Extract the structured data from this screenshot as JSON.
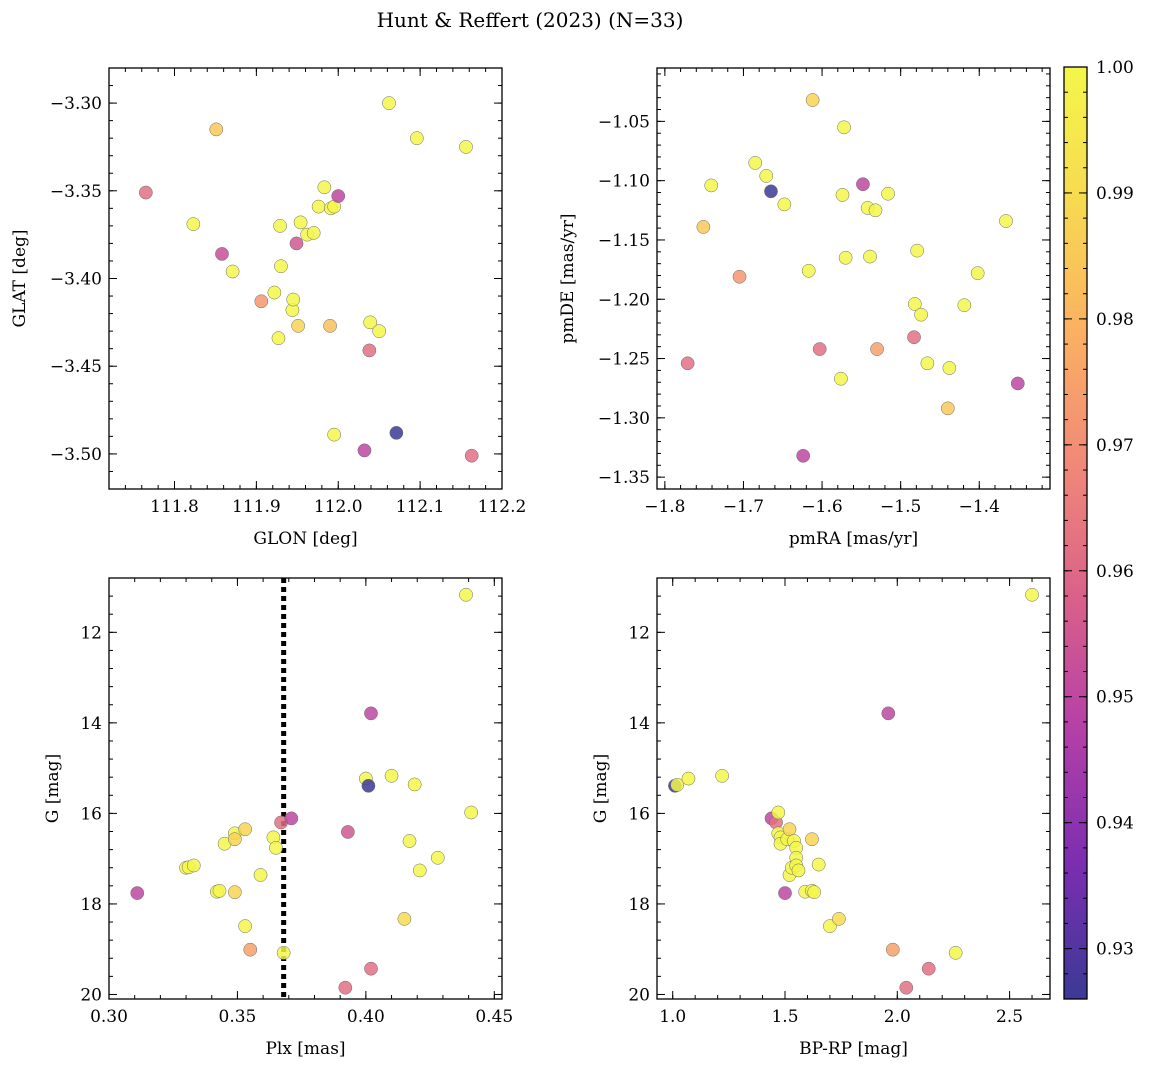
{
  "figure": {
    "title": "Hunt & Reffert (2023) (N=33)"
  },
  "colorbar": {
    "range": [
      0.926,
      1.0
    ],
    "ticks": [
      0.93,
      0.94,
      0.95,
      0.96,
      0.97,
      0.98,
      0.99,
      1.0
    ],
    "tick_labels": [
      "0.93",
      "0.94",
      "0.95",
      "0.96",
      "0.97",
      "0.98",
      "0.99",
      "1.00"
    ],
    "colormap": "plasma",
    "stops": [
      "#3b3a96",
      "#7a2eb0",
      "#b33fa8",
      "#d9608a",
      "#f08878",
      "#fbb062",
      "#f7da50",
      "#f4f64a"
    ]
  },
  "chart_data": [
    {
      "id": "glon-glat",
      "type": "scatter",
      "title": "",
      "xlabel": "GLON [deg]",
      "ylabel": "GLAT [deg]",
      "xlim": [
        111.72,
        112.2
      ],
      "ylim": [
        -3.52,
        -3.28
      ],
      "y_inverted": false,
      "xticks": [
        111.8,
        111.9,
        112.0,
        112.1,
        112.2
      ],
      "xtick_labels": [
        "111.8",
        "111.9",
        "112.0",
        "112.1",
        "112.2"
      ],
      "yticks": [
        -3.5,
        -3.45,
        -3.4,
        -3.35,
        -3.3
      ],
      "ytick_labels": [
        "−3.50",
        "−3.45",
        "−3.40",
        "−3.35",
        "−3.30"
      ],
      "points": [
        {
          "x": 111.765,
          "y": -3.351,
          "c": 0.962
        },
        {
          "x": 111.823,
          "y": -3.369,
          "c": 1.0
        },
        {
          "x": 111.851,
          "y": -3.315,
          "c": 0.985
        },
        {
          "x": 111.858,
          "y": -3.386,
          "c": 0.952
        },
        {
          "x": 111.871,
          "y": -3.396,
          "c": 1.0
        },
        {
          "x": 111.906,
          "y": -3.413,
          "c": 0.972
        },
        {
          "x": 111.922,
          "y": -3.408,
          "c": 1.0
        },
        {
          "x": 111.927,
          "y": -3.434,
          "c": 1.0
        },
        {
          "x": 111.929,
          "y": -3.37,
          "c": 1.0
        },
        {
          "x": 111.93,
          "y": -3.393,
          "c": 1.0
        },
        {
          "x": 111.944,
          "y": -3.418,
          "c": 1.0
        },
        {
          "x": 111.945,
          "y": -3.412,
          "c": 1.0
        },
        {
          "x": 111.949,
          "y": -3.38,
          "c": 0.955
        },
        {
          "x": 111.951,
          "y": -3.427,
          "c": 0.988
        },
        {
          "x": 111.954,
          "y": -3.368,
          "c": 1.0
        },
        {
          "x": 111.962,
          "y": -3.375,
          "c": 1.0
        },
        {
          "x": 111.97,
          "y": -3.374,
          "c": 1.0
        },
        {
          "x": 111.976,
          "y": -3.359,
          "c": 1.0
        },
        {
          "x": 111.983,
          "y": -3.348,
          "c": 1.0
        },
        {
          "x": 111.99,
          "y": -3.427,
          "c": 0.983
        },
        {
          "x": 111.991,
          "y": -3.36,
          "c": 1.0
        },
        {
          "x": 111.995,
          "y": -3.359,
          "c": 1.0
        },
        {
          "x": 111.995,
          "y": -3.489,
          "c": 1.0
        },
        {
          "x": 112.0,
          "y": -3.353,
          "c": 0.95
        },
        {
          "x": 112.032,
          "y": -3.498,
          "c": 0.95
        },
        {
          "x": 112.038,
          "y": -3.441,
          "c": 0.962
        },
        {
          "x": 112.039,
          "y": -3.425,
          "c": 1.0
        },
        {
          "x": 112.05,
          "y": -3.43,
          "c": 1.0
        },
        {
          "x": 112.062,
          "y": -3.3,
          "c": 1.0
        },
        {
          "x": 112.071,
          "y": -3.488,
          "c": 0.926
        },
        {
          "x": 112.096,
          "y": -3.32,
          "c": 1.0
        },
        {
          "x": 112.156,
          "y": -3.325,
          "c": 1.0
        },
        {
          "x": 112.163,
          "y": -3.501,
          "c": 0.962
        }
      ]
    },
    {
      "id": "pm",
      "type": "scatter",
      "title": "",
      "xlabel": "pmRA [mas/yr]",
      "ylabel": "pmDE [mas/yr]",
      "xlim": [
        -1.81,
        -1.31
      ],
      "ylim": [
        -1.36,
        -1.005
      ],
      "y_inverted": false,
      "xticks": [
        -1.8,
        -1.7,
        -1.6,
        -1.5,
        -1.4
      ],
      "xtick_labels": [
        "−1.8",
        "−1.7",
        "−1.6",
        "−1.5",
        "−1.4"
      ],
      "yticks": [
        -1.35,
        -1.3,
        -1.25,
        -1.2,
        -1.15,
        -1.1,
        -1.05
      ],
      "ytick_labels": [
        "−1.35",
        "−1.30",
        "−1.25",
        "−1.20",
        "−1.15",
        "−1.10",
        "−1.05"
      ],
      "points": [
        {
          "x": -1.771,
          "y": -1.254,
          "c": 0.962
        },
        {
          "x": -1.751,
          "y": -1.139,
          "c": 0.985
        },
        {
          "x": -1.741,
          "y": -1.104,
          "c": 1.0
        },
        {
          "x": -1.705,
          "y": -1.181,
          "c": 0.972
        },
        {
          "x": -1.685,
          "y": -1.085,
          "c": 1.0
        },
        {
          "x": -1.671,
          "y": -1.096,
          "c": 1.0
        },
        {
          "x": -1.665,
          "y": -1.109,
          "c": 0.926
        },
        {
          "x": -1.648,
          "y": -1.12,
          "c": 1.0
        },
        {
          "x": -1.624,
          "y": -1.332,
          "c": 0.95
        },
        {
          "x": -1.617,
          "y": -1.176,
          "c": 1.0
        },
        {
          "x": -1.612,
          "y": -1.032,
          "c": 0.988
        },
        {
          "x": -1.603,
          "y": -1.242,
          "c": 0.962
        },
        {
          "x": -1.576,
          "y": -1.267,
          "c": 1.0
        },
        {
          "x": -1.574,
          "y": -1.112,
          "c": 1.0
        },
        {
          "x": -1.572,
          "y": -1.055,
          "c": 1.0
        },
        {
          "x": -1.57,
          "y": -1.165,
          "c": 1.0
        },
        {
          "x": -1.548,
          "y": -1.103,
          "c": 0.95
        },
        {
          "x": -1.542,
          "y": -1.123,
          "c": 1.0
        },
        {
          "x": -1.539,
          "y": -1.164,
          "c": 1.0
        },
        {
          "x": -1.532,
          "y": -1.125,
          "c": 1.0
        },
        {
          "x": -1.53,
          "y": -1.242,
          "c": 0.975
        },
        {
          "x": -1.516,
          "y": -1.111,
          "c": 1.0
        },
        {
          "x": -1.483,
          "y": -1.232,
          "c": 0.962
        },
        {
          "x": -1.482,
          "y": -1.204,
          "c": 1.0
        },
        {
          "x": -1.479,
          "y": -1.159,
          "c": 1.0
        },
        {
          "x": -1.474,
          "y": -1.213,
          "c": 1.0
        },
        {
          "x": -1.466,
          "y": -1.254,
          "c": 1.0
        },
        {
          "x": -1.44,
          "y": -1.292,
          "c": 0.985
        },
        {
          "x": -1.438,
          "y": -1.258,
          "c": 1.0
        },
        {
          "x": -1.419,
          "y": -1.205,
          "c": 1.0
        },
        {
          "x": -1.402,
          "y": -1.178,
          "c": 1.0
        },
        {
          "x": -1.366,
          "y": -1.134,
          "c": 1.0
        },
        {
          "x": -1.351,
          "y": -1.271,
          "c": 0.95
        }
      ]
    },
    {
      "id": "plx-g",
      "type": "scatter",
      "title": "",
      "xlabel": "Plx [mas]",
      "ylabel": "G [mag]",
      "xlim": [
        0.3,
        0.453
      ],
      "ylim": [
        20.1,
        10.8
      ],
      "y_inverted": true,
      "xticks": [
        0.3,
        0.35,
        0.4,
        0.45
      ],
      "xtick_labels": [
        "0.30",
        "0.35",
        "0.40",
        "0.45"
      ],
      "yticks": [
        12,
        14,
        16,
        18,
        20
      ],
      "ytick_labels": [
        "12",
        "14",
        "16",
        "18",
        "20"
      ],
      "vline": 0.368,
      "points": [
        {
          "x": 0.311,
          "y": 17.76,
          "c": 0.95
        },
        {
          "x": 0.33,
          "y": 17.2,
          "c": 1.0
        },
        {
          "x": 0.331,
          "y": 17.19,
          "c": 1.0
        },
        {
          "x": 0.333,
          "y": 17.15,
          "c": 1.0
        },
        {
          "x": 0.342,
          "y": 17.73,
          "c": 1.0
        },
        {
          "x": 0.343,
          "y": 17.71,
          "c": 1.0
        },
        {
          "x": 0.345,
          "y": 16.67,
          "c": 1.0
        },
        {
          "x": 0.349,
          "y": 16.44,
          "c": 1.0
        },
        {
          "x": 0.349,
          "y": 16.57,
          "c": 0.988
        },
        {
          "x": 0.349,
          "y": 17.74,
          "c": 0.988
        },
        {
          "x": 0.353,
          "y": 16.35,
          "c": 0.988
        },
        {
          "x": 0.353,
          "y": 18.49,
          "c": 1.0
        },
        {
          "x": 0.355,
          "y": 19.01,
          "c": 0.975
        },
        {
          "x": 0.359,
          "y": 17.36,
          "c": 1.0
        },
        {
          "x": 0.364,
          "y": 16.53,
          "c": 1.0
        },
        {
          "x": 0.365,
          "y": 16.76,
          "c": 1.0
        },
        {
          "x": 0.367,
          "y": 16.2,
          "c": 0.962
        },
        {
          "x": 0.368,
          "y": 19.08,
          "c": 1.0
        },
        {
          "x": 0.371,
          "y": 16.11,
          "c": 0.95
        },
        {
          "x": 0.392,
          "y": 19.85,
          "c": 0.962
        },
        {
          "x": 0.393,
          "y": 16.41,
          "c": 0.955
        },
        {
          "x": 0.4,
          "y": 15.23,
          "c": 1.0
        },
        {
          "x": 0.401,
          "y": 15.39,
          "c": 0.926
        },
        {
          "x": 0.402,
          "y": 13.79,
          "c": 0.95
        },
        {
          "x": 0.402,
          "y": 19.43,
          "c": 0.962
        },
        {
          "x": 0.41,
          "y": 15.17,
          "c": 1.0
        },
        {
          "x": 0.415,
          "y": 18.33,
          "c": 0.99
        },
        {
          "x": 0.417,
          "y": 16.61,
          "c": 1.0
        },
        {
          "x": 0.419,
          "y": 15.36,
          "c": 1.0
        },
        {
          "x": 0.421,
          "y": 17.26,
          "c": 1.0
        },
        {
          "x": 0.428,
          "y": 16.98,
          "c": 1.0
        },
        {
          "x": 0.439,
          "y": 11.17,
          "c": 1.0
        },
        {
          "x": 0.441,
          "y": 15.98,
          "c": 1.0
        }
      ]
    },
    {
      "id": "cmd",
      "type": "scatter",
      "title": "",
      "xlabel": "BP-RP [mag]",
      "ylabel": "G [mag]",
      "xlim": [
        0.93,
        2.68
      ],
      "ylim": [
        20.1,
        10.8
      ],
      "y_inverted": true,
      "xticks": [
        1.0,
        1.5,
        2.0,
        2.5
      ],
      "xtick_labels": [
        "1.0",
        "1.5",
        "2.0",
        "2.5"
      ],
      "yticks": [
        12,
        14,
        16,
        18,
        20
      ],
      "ytick_labels": [
        "12",
        "14",
        "16",
        "18",
        "20"
      ],
      "points": [
        {
          "x": 1.01,
          "y": 15.39,
          "c": 0.926
        },
        {
          "x": 1.02,
          "y": 15.37,
          "c": 1.0
        },
        {
          "x": 1.07,
          "y": 15.23,
          "c": 1.0
        },
        {
          "x": 1.22,
          "y": 15.17,
          "c": 1.0
        },
        {
          "x": 1.44,
          "y": 16.11,
          "c": 0.95
        },
        {
          "x": 1.46,
          "y": 16.2,
          "c": 0.962
        },
        {
          "x": 1.47,
          "y": 15.98,
          "c": 1.0
        },
        {
          "x": 1.47,
          "y": 16.44,
          "c": 1.0
        },
        {
          "x": 1.48,
          "y": 16.53,
          "c": 1.0
        },
        {
          "x": 1.48,
          "y": 16.67,
          "c": 1.0
        },
        {
          "x": 1.5,
          "y": 17.76,
          "c": 0.95
        },
        {
          "x": 1.51,
          "y": 16.57,
          "c": 1.0
        },
        {
          "x": 1.52,
          "y": 16.35,
          "c": 0.988
        },
        {
          "x": 1.52,
          "y": 17.36,
          "c": 1.0
        },
        {
          "x": 1.53,
          "y": 17.2,
          "c": 1.0
        },
        {
          "x": 1.54,
          "y": 16.61,
          "c": 1.0
        },
        {
          "x": 1.55,
          "y": 16.76,
          "c": 1.0
        },
        {
          "x": 1.55,
          "y": 16.98,
          "c": 1.0
        },
        {
          "x": 1.55,
          "y": 17.15,
          "c": 1.0
        },
        {
          "x": 1.56,
          "y": 17.26,
          "c": 1.0
        },
        {
          "x": 1.59,
          "y": 17.73,
          "c": 1.0
        },
        {
          "x": 1.62,
          "y": 17.71,
          "c": 1.0
        },
        {
          "x": 1.62,
          "y": 16.57,
          "c": 0.988
        },
        {
          "x": 1.63,
          "y": 17.74,
          "c": 1.0
        },
        {
          "x": 1.65,
          "y": 17.13,
          "c": 1.0
        },
        {
          "x": 1.7,
          "y": 18.49,
          "c": 1.0
        },
        {
          "x": 1.74,
          "y": 18.33,
          "c": 0.99
        },
        {
          "x": 1.96,
          "y": 13.79,
          "c": 0.95
        },
        {
          "x": 1.98,
          "y": 19.01,
          "c": 0.975
        },
        {
          "x": 2.04,
          "y": 19.85,
          "c": 0.962
        },
        {
          "x": 2.14,
          "y": 19.43,
          "c": 0.962
        },
        {
          "x": 2.26,
          "y": 19.08,
          "c": 1.0
        },
        {
          "x": 2.6,
          "y": 11.17,
          "c": 1.0
        }
      ]
    }
  ]
}
